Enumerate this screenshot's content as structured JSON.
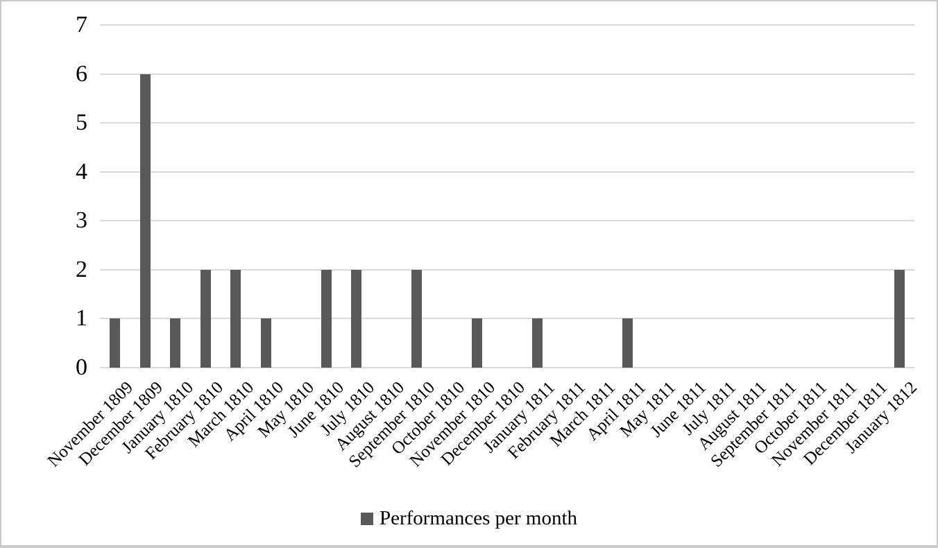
{
  "chart_data": {
    "type": "bar",
    "title": "",
    "xlabel": "",
    "ylabel": "",
    "categories": [
      "November 1809",
      "December 1809",
      "January 1810",
      "February 1810",
      "March 1810",
      "April 1810",
      "May 1810",
      "June 1810",
      "July 1810",
      "August 1810",
      "September 1810",
      "October 1810",
      "November 1810",
      "December 1810",
      "January 1811",
      "February 1811",
      "March 1811",
      "April 1811",
      "May 1811",
      "June 1811",
      "July 1811",
      "August 1811",
      "September 1811",
      "October 1811",
      "November 1811",
      "December 1811",
      "January 1812"
    ],
    "values": [
      1,
      6,
      1,
      2,
      2,
      1,
      0,
      2,
      2,
      0,
      2,
      0,
      1,
      0,
      1,
      0,
      0,
      1,
      0,
      0,
      0,
      0,
      0,
      0,
      0,
      0,
      2
    ],
    "ylim": [
      0,
      7
    ],
    "yticks": [
      0,
      1,
      2,
      3,
      4,
      5,
      6,
      7
    ],
    "grid": "horizontal",
    "legend": [
      "Performances per month"
    ],
    "legend_position": "bottom",
    "colors": {
      "bar": "#595959",
      "gridline": "#d9d9d9",
      "text": "#000000",
      "border": "#c9c9c9"
    }
  }
}
